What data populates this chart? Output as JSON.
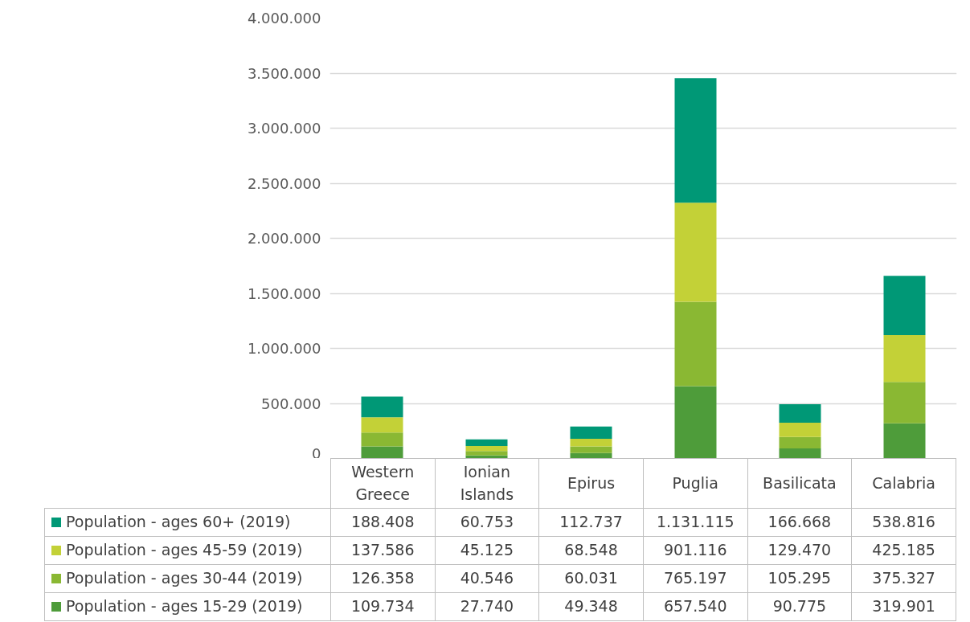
{
  "chart_data": {
    "type": "bar",
    "stacked": true,
    "categories": [
      "Western\nGreece",
      "Ionian\nIslands",
      "Epirus",
      "Puglia",
      "Basilicata",
      "Calabria"
    ],
    "series": [
      {
        "name": "Population - ages 15-29 (2019)",
        "color": "#4e9c3a",
        "values": [
          109734,
          27740,
          49348,
          657540,
          90775,
          319901
        ],
        "value_labels": [
          "109.734",
          "27.740",
          "49.348",
          "657.540",
          "90.775",
          "319.901"
        ]
      },
      {
        "name": "Population - ages 30-44 (2019)",
        "color": "#8ab833",
        "values": [
          126358,
          40546,
          60031,
          765197,
          105295,
          375327
        ],
        "value_labels": [
          "126.358",
          "40.546",
          "60.031",
          "765.197",
          "105.295",
          "375.327"
        ]
      },
      {
        "name": "Population - ages 45-59 (2019)",
        "color": "#c3d137",
        "values": [
          137586,
          45125,
          68548,
          901116,
          129470,
          425185
        ],
        "value_labels": [
          "137.586",
          "45.125",
          "68.548",
          "901.116",
          "129.470",
          "425.185"
        ]
      },
      {
        "name": "Population - ages 60+ (2019)",
        "color": "#009876",
        "values": [
          188408,
          60753,
          112737,
          1131115,
          166668,
          538816
        ],
        "value_labels": [
          "188.408",
          "60.753",
          "112.737",
          "1.131.115",
          "166.668",
          "538.816"
        ]
      }
    ],
    "ylim": [
      0,
      4000000
    ],
    "yticks": [
      {
        "value": 0,
        "label": "0"
      },
      {
        "value": 500000,
        "label": "500.000"
      },
      {
        "value": 1000000,
        "label": "1.000.000"
      },
      {
        "value": 1500000,
        "label": "1.500.000"
      },
      {
        "value": 2000000,
        "label": "2.000.000"
      },
      {
        "value": 2500000,
        "label": "2.500.000"
      },
      {
        "value": 3000000,
        "label": "3.000.000"
      },
      {
        "value": 3500000,
        "label": "3.500.000"
      },
      {
        "value": 4000000,
        "label": "4.000.000"
      }
    ],
    "grid": "y",
    "legend": "bottom"
  }
}
